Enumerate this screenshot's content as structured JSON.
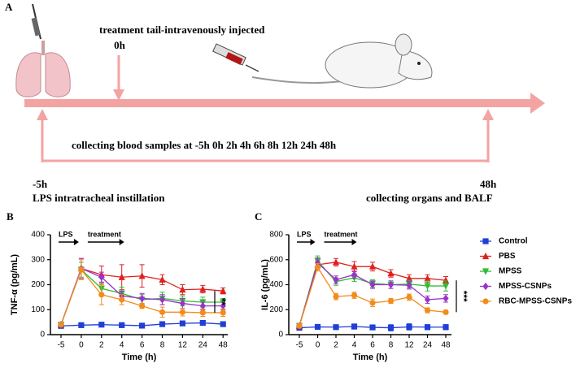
{
  "panel_a": {
    "letter": "A",
    "treatment": "treatment  tail-intravenously injected",
    "zero": "0h",
    "blood": "collecting blood samples at  -5h 0h 2h 4h 6h 8h 12h 24h 48h",
    "start": "-5h",
    "lps": "LPS intratracheal instillation",
    "end": "48h",
    "organs": "collecting organs and BALF"
  },
  "chart_data": [
    {
      "type": "line",
      "letter": "B",
      "ylabel": "TNF-α (pg/mL)",
      "xlabel": "Time (h)",
      "annotations": [
        "LPS",
        "treatment"
      ],
      "significance": "**",
      "categories": [
        "-5",
        "0",
        "2",
        "4",
        "6",
        "8",
        "12",
        "24",
        "48"
      ],
      "ylim": [
        0,
        400
      ],
      "yticks": [
        0,
        100,
        200,
        300,
        400
      ],
      "series": [
        {
          "color": "#1f3fd6",
          "marker": "square",
          "values": [
            35,
            38,
            40,
            38,
            36,
            42,
            45,
            47,
            42
          ],
          "errors": [
            6,
            6,
            8,
            6,
            6,
            8,
            6,
            6,
            8
          ]
        },
        {
          "color": "#e02020",
          "marker": "triangle",
          "values": [
            40,
            265,
            240,
            230,
            235,
            220,
            180,
            182,
            175
          ],
          "errors": [
            6,
            40,
            35,
            50,
            45,
            20,
            20,
            15,
            12
          ]
        },
        {
          "color": "#33bb33",
          "marker": "triangle-down",
          "values": [
            40,
            260,
            185,
            165,
            140,
            145,
            135,
            130,
            130
          ],
          "errors": [
            6,
            30,
            25,
            25,
            20,
            25,
            20,
            20,
            15
          ]
        },
        {
          "color": "#9933cc",
          "marker": "diamond",
          "values": [
            40,
            265,
            230,
            155,
            145,
            140,
            125,
            115,
            115
          ],
          "errors": [
            6,
            40,
            20,
            20,
            20,
            20,
            20,
            15,
            15
          ]
        },
        {
          "color": "#f28c1e",
          "marker": "circle",
          "values": [
            40,
            260,
            160,
            140,
            115,
            90,
            90,
            88,
            88
          ],
          "errors": [
            6,
            40,
            40,
            20,
            10,
            20,
            15,
            15,
            15
          ]
        }
      ]
    },
    {
      "type": "line",
      "letter": "C",
      "ylabel": "IL-6 (pg/mL)",
      "xlabel": "Time (h)",
      "annotations": [
        "LPS",
        "treatment"
      ],
      "significance": "***",
      "categories": [
        "-5",
        "0",
        "2",
        "4",
        "6",
        "8",
        "12",
        "24",
        "48"
      ],
      "ylim": [
        0,
        800
      ],
      "yticks": [
        0,
        200,
        400,
        600,
        800
      ],
      "series": [
        {
          "name": "Control",
          "color": "#1f3fd6",
          "marker": "square",
          "values": [
            55,
            62,
            60,
            65,
            58,
            55,
            62,
            60,
            60
          ],
          "errors": [
            10,
            12,
            15,
            20,
            12,
            25,
            25,
            20,
            20
          ]
        },
        {
          "name": "PBS",
          "color": "#e02020",
          "marker": "triangle",
          "values": [
            70,
            560,
            580,
            545,
            545,
            490,
            450,
            450,
            435
          ],
          "errors": [
            10,
            30,
            30,
            40,
            35,
            30,
            30,
            30,
            30
          ]
        },
        {
          "name": "MPSS",
          "color": "#33bb33",
          "marker": "triangle-down",
          "values": [
            70,
            590,
            425,
            455,
            410,
            400,
            405,
            390,
            390
          ],
          "errors": [
            10,
            40,
            30,
            30,
            30,
            30,
            30,
            40,
            40
          ]
        },
        {
          "name": "MPSS-CSNPs",
          "color": "#9933cc",
          "marker": "diamond",
          "values": [
            70,
            575,
            440,
            480,
            400,
            400,
            395,
            280,
            290
          ],
          "errors": [
            10,
            40,
            30,
            30,
            30,
            30,
            30,
            30,
            30
          ]
        },
        {
          "name": "RBC-MPSS-CSNPs",
          "color": "#f28c1e",
          "marker": "circle",
          "values": [
            70,
            540,
            305,
            315,
            255,
            270,
            300,
            195,
            180
          ],
          "errors": [
            10,
            30,
            25,
            25,
            30,
            20,
            25,
            20,
            15
          ]
        }
      ]
    }
  ]
}
